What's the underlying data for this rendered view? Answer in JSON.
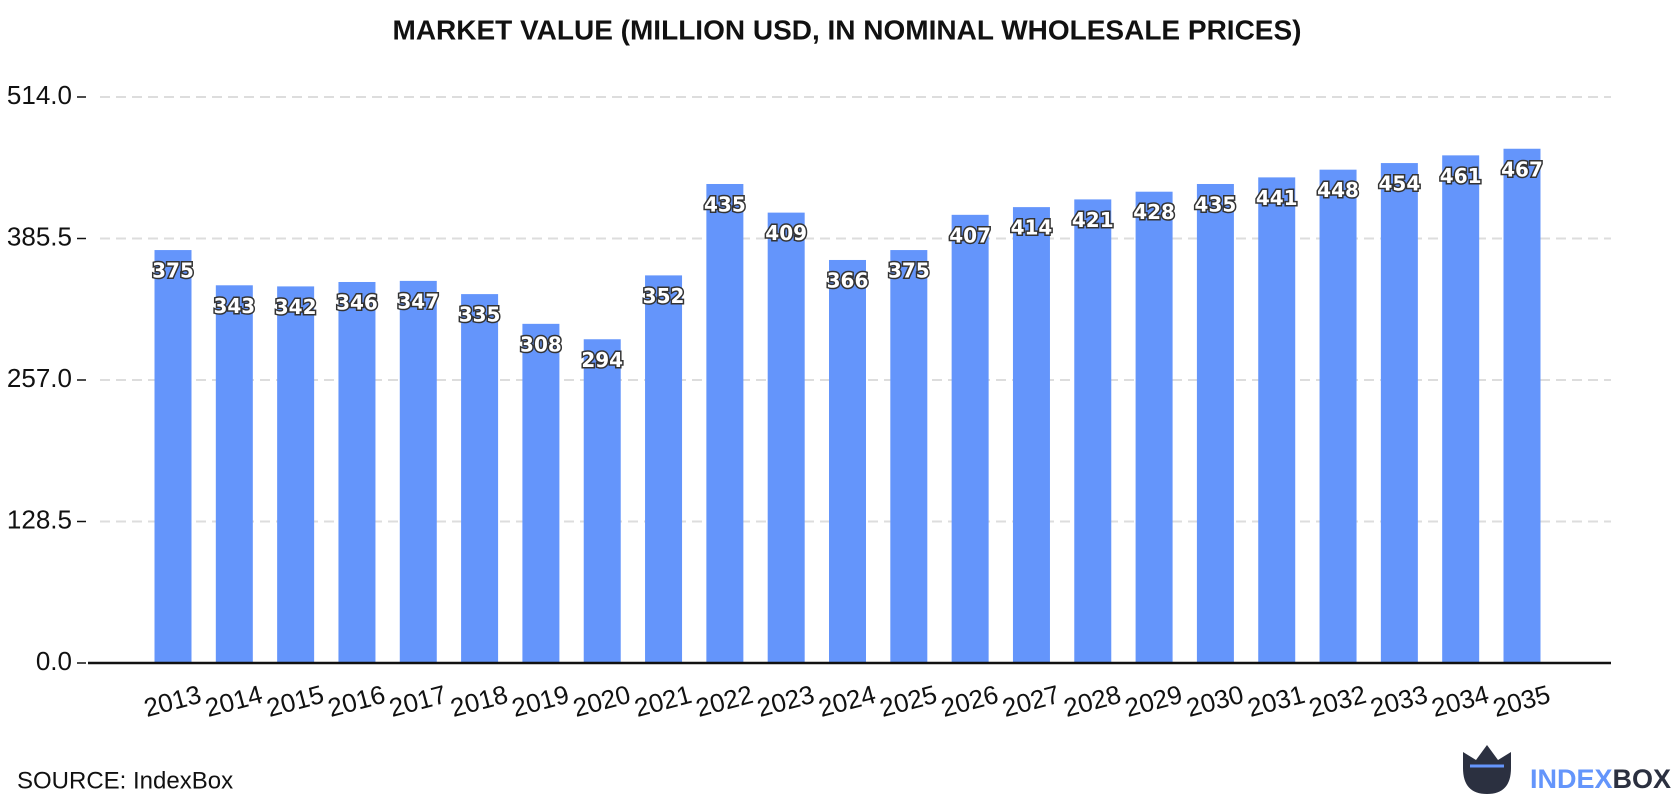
{
  "chart_data": {
    "type": "bar",
    "title": "MARKET VALUE (MILLION USD, IN NOMINAL WHOLESALE PRICES)",
    "categories": [
      "2013",
      "2014",
      "2015",
      "2016",
      "2017",
      "2018",
      "2019",
      "2020",
      "2021",
      "2022",
      "2023",
      "2024",
      "2025",
      "2026",
      "2027",
      "2028",
      "2029",
      "2030",
      "2031",
      "2032",
      "2033",
      "2034",
      "2035"
    ],
    "values": [
      375,
      343,
      342,
      346,
      347,
      335,
      308,
      294,
      352,
      435,
      409,
      366,
      375,
      407,
      414,
      421,
      428,
      435,
      441,
      448,
      454,
      461,
      467
    ],
    "color": "#6495fb",
    "ylim": [
      0,
      514
    ],
    "yticks": [
      {
        "value": 0,
        "label": "0.0"
      },
      {
        "value": 128.5,
        "label": "128.5"
      },
      {
        "value": 257,
        "label": "257.0"
      },
      {
        "value": 385.5,
        "label": "385.5"
      },
      {
        "value": 514,
        "label": "514.0"
      }
    ],
    "grid": true
  },
  "footer": {
    "source": "SOURCE: IndexBox",
    "logo_parts": [
      "INDEX",
      "BOX"
    ]
  }
}
